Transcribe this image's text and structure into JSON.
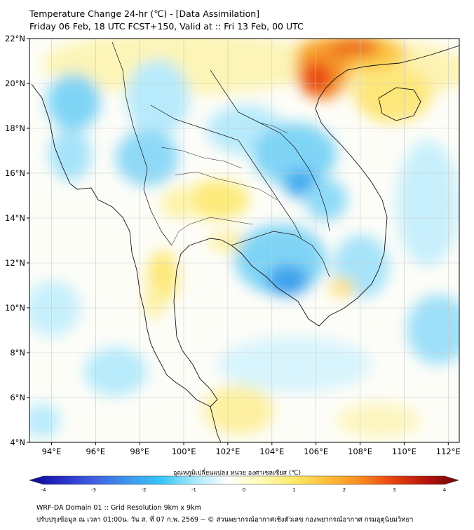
{
  "title": {
    "line1": "Temperature Change 24-hr (℃) - [Data Assimilation]",
    "line2": "Friday 06 Feb, 18 UTC FCST+150, Valid at :: Fri 13 Feb, 00 UTC"
  },
  "map": {
    "lat_labels": [
      "22°N",
      "20°N",
      "18°N",
      "16°N",
      "14°N",
      "12°N",
      "10°N",
      "8°N",
      "6°N",
      "4°N"
    ],
    "lon_labels": [
      "94°E",
      "96°E",
      "98°E",
      "100°E",
      "102°E",
      "104°E",
      "106°E",
      "108°E",
      "110°E",
      "112°E"
    ],
    "lat_range": [
      4,
      22
    ],
    "lon_range": [
      93,
      112.5
    ],
    "field": {
      "variable": "24-hr temperature change",
      "unit": "℃",
      "features": [
        {
          "type": "warm",
          "area": "northern Vietnam / Gulf of Tonkin coast",
          "approx_value": 3
        },
        {
          "type": "warm",
          "area": "southern China coast",
          "approx_value": 1.5
        },
        {
          "type": "cool",
          "area": "northern Myanmar",
          "approx_value": -1
        },
        {
          "type": "cool",
          "area": "Laos / central Vietnam",
          "approx_value": -1.5
        },
        {
          "type": "cool",
          "area": "Cambodia / southern Vietnam",
          "approx_value": -2
        },
        {
          "type": "warm",
          "area": "central Thailand",
          "approx_value": 1
        },
        {
          "type": "warm",
          "area": "western Thailand / Andaman coast",
          "approx_value": 1
        },
        {
          "type": "cool",
          "area": "South China Sea east",
          "approx_value": -1
        },
        {
          "type": "warm",
          "area": "southern Gulf of Thailand",
          "approx_value": 0.8
        }
      ]
    }
  },
  "colorbar": {
    "title": "อุณหภูมิเปลี่ยนแปลง หน่วย องศาเซลเซียส (℃)",
    "ticks": [
      "-4",
      "-3",
      "-2",
      "-1",
      "0",
      "1",
      "2",
      "3",
      "4"
    ],
    "min": -4,
    "max": 4,
    "colors": [
      "#08088a",
      "#2a2fc7",
      "#3e63e0",
      "#3f97ee",
      "#36c7f5",
      "#a8e8fb",
      "#ffffff",
      "#fffcb4",
      "#fde96a",
      "#fbc03a",
      "#f88c22",
      "#e84410",
      "#b8140c",
      "#6b0707"
    ]
  },
  "footer": {
    "line1": "WRF-DA Domain 01 :: Grid Resolution 9km x 9km",
    "line2": "ปรับปรุงข้อมูล ณ เวลา 01:00น. วัน ส. ที่ 07 ก.พ. 2569 -- © ส่วนพยากรณ์อากาศเชิงตัวเลข กองพยากรณ์อากาศ กรมอุตุนิยมวิทยา"
  }
}
